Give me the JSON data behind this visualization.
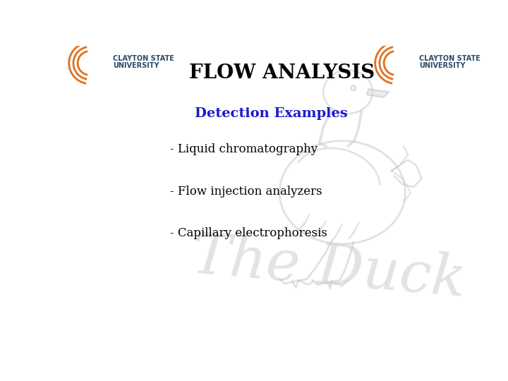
{
  "title": "FLOW ANALYSIS",
  "subtitle": "Detection Examples",
  "bullet1": "- Liquid chromatography",
  "bullet2": "- Flow injection analyzers",
  "bullet3": "- Capillary electrophoresis",
  "watermark_text": "The Duck",
  "bg_color": "#ffffff",
  "title_color": "#000000",
  "subtitle_color": "#1a1acc",
  "bullet_color": "#000000",
  "watermark_color": "#d0d0d0",
  "logo_text1": "CLAYTON STATE",
  "logo_text2": "UNIVERSITY",
  "logo_orange": "#e07020",
  "logo_blue": "#2a4a6a",
  "title_fontsize": 20,
  "subtitle_fontsize": 14,
  "bullet_fontsize": 12,
  "watermark_fontsize": 58,
  "duck_color": "#c8c8d0",
  "duck_alpha": 0.55
}
